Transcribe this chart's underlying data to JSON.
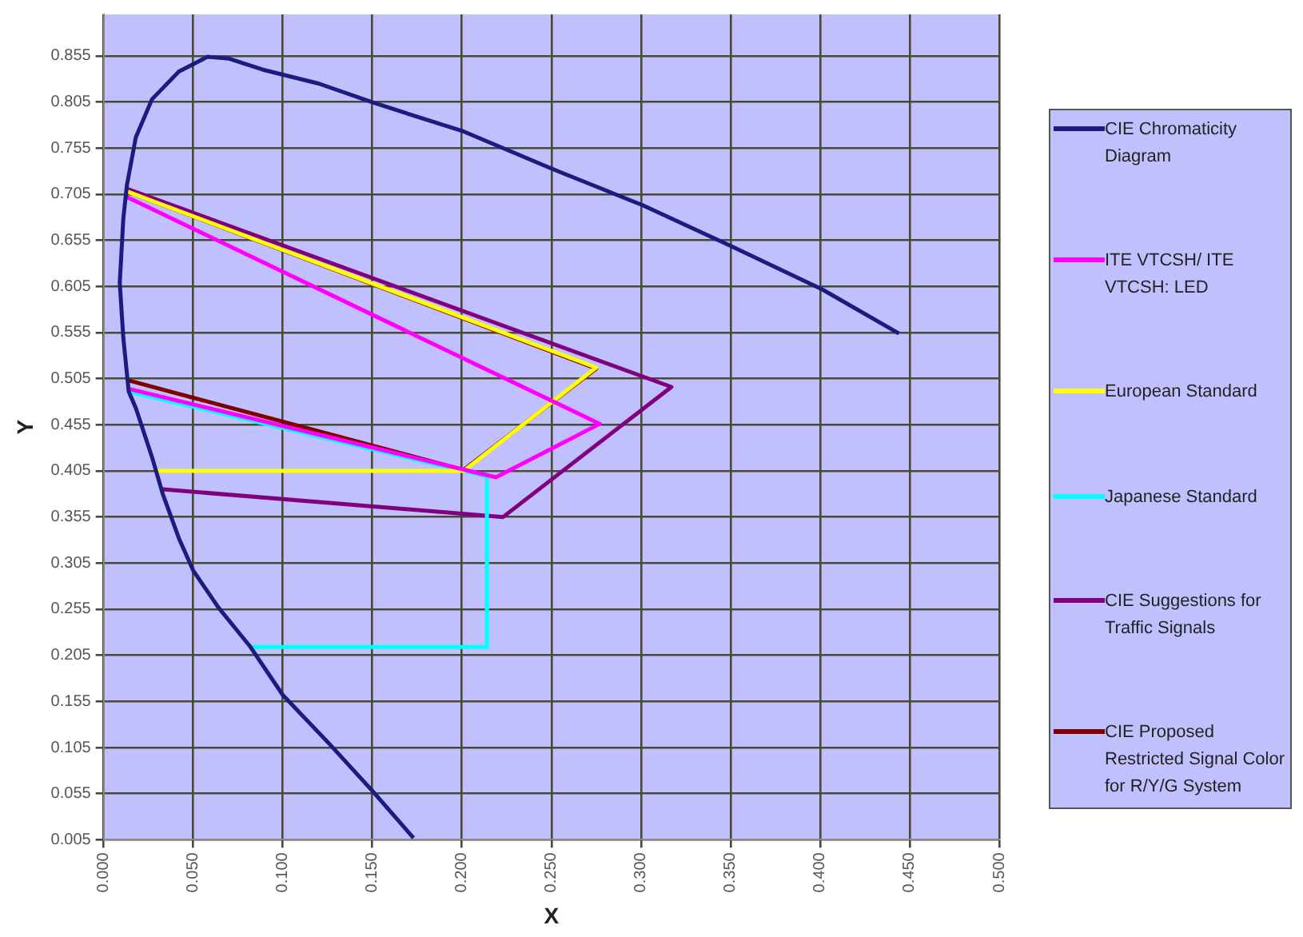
{
  "chart_data": {
    "type": "line",
    "xlabel": "X",
    "ylabel": "Y",
    "xlim": [
      0,
      0.5
    ],
    "ylim": [
      0.005,
      0.9
    ],
    "xticks": [
      {
        "value": 0,
        "label": "0.000"
      },
      {
        "value": 0.05,
        "label": "0.050"
      },
      {
        "value": 0.1,
        "label": "0.100"
      },
      {
        "value": 0.15,
        "label": "0.150"
      },
      {
        "value": 0.2,
        "label": "0.200"
      },
      {
        "value": 0.25,
        "label": "0.250"
      },
      {
        "value": 0.3,
        "label": "0.300"
      },
      {
        "value": 0.35,
        "label": "0.350"
      },
      {
        "value": 0.4,
        "label": "0.400"
      },
      {
        "value": 0.45,
        "label": "0.450"
      },
      {
        "value": 0.5,
        "label": "0.500"
      }
    ],
    "yticks": [
      0.005,
      0.055,
      0.105,
      0.155,
      0.205,
      0.255,
      0.305,
      0.355,
      0.405,
      0.455,
      0.505,
      0.555,
      0.605,
      0.655,
      0.705,
      0.755,
      0.805,
      0.855
    ],
    "grid": true,
    "legend": "right",
    "marker": "none",
    "line_style": "solid",
    "series": [
      {
        "name": "CIE Chromaticity Diagram",
        "color": "#1c1c80",
        "x": [
          0.173,
          0.15,
          0.126,
          0.1,
          0.082,
          0.064,
          0.05,
          0.042,
          0.033,
          0.027,
          0.018,
          0.014,
          0.011,
          0.009,
          0.011,
          0.013,
          0.018,
          0.027,
          0.042,
          0.058,
          0.07,
          0.089,
          0.12,
          0.151,
          0.201,
          0.251,
          0.301,
          0.35,
          0.401,
          0.444
        ],
        "values": [
          0.007,
          0.058,
          0.109,
          0.162,
          0.214,
          0.257,
          0.297,
          0.332,
          0.38,
          0.42,
          0.473,
          0.491,
          0.549,
          0.609,
          0.679,
          0.715,
          0.767,
          0.808,
          0.838,
          0.854,
          0.852,
          0.84,
          0.825,
          0.804,
          0.773,
          0.732,
          0.693,
          0.649,
          0.602,
          0.554
        ]
      },
      {
        "name": "ITE VTCSH/ ITE VTCSH: LED",
        "color": "#ff00ff",
        "x": [
          0.013,
          0.277,
          0.219,
          0.014
        ],
        "values": [
          0.702,
          0.456,
          0.398,
          0.494
        ]
      },
      {
        "name": "European Standard",
        "color": "#ffff00",
        "x": [
          0.03,
          0.201,
          0.275,
          0.013
        ],
        "values": [
          0.405,
          0.405,
          0.517,
          0.708
        ]
      },
      {
        "name": "Japanese Standard",
        "color": "#00ffff",
        "x": [
          0.014,
          0.214,
          0.214,
          0.082
        ],
        "values": [
          0.491,
          0.399,
          0.214,
          0.214
        ]
      },
      {
        "name": "CIE Suggestions for Traffic Signals",
        "color": "#800080",
        "x": [
          0.013,
          0.317,
          0.223,
          0.033
        ],
        "values": [
          0.711,
          0.496,
          0.355,
          0.385
        ]
      },
      {
        "name": "CIE Proposed Restricted Signal Color for R/Y/G System",
        "color": "#800000",
        "x": [
          0.013,
          0.275,
          0.201,
          0.014
        ],
        "values": [
          0.708,
          0.516,
          0.406,
          0.503
        ]
      }
    ]
  }
}
